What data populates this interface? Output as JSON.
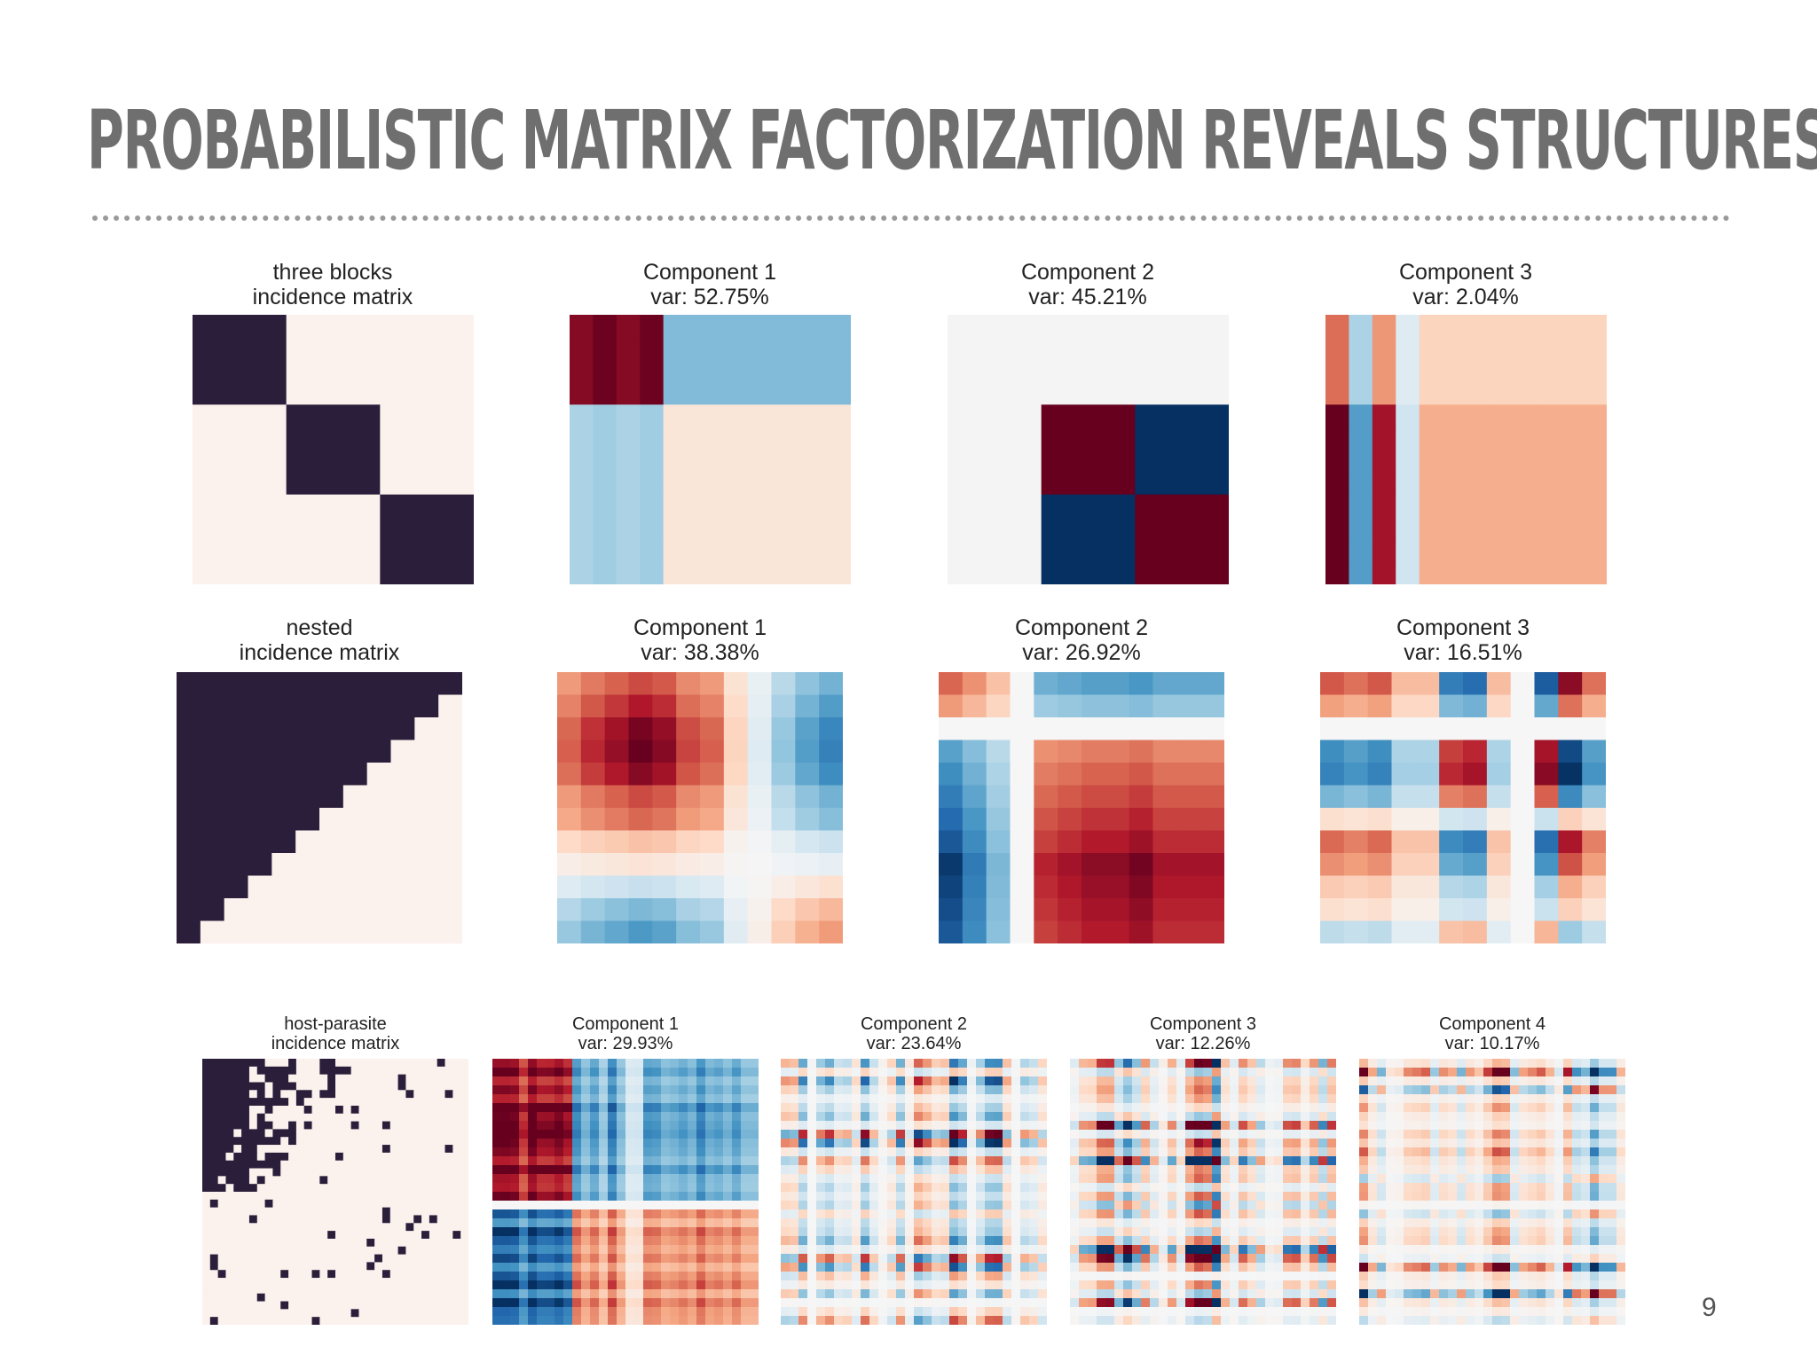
{
  "slide": {
    "title": "PROBABILISTIC MATRIX FACTORIZATION REVEALS STRUCTURES",
    "page_number": "9"
  },
  "colors": {
    "dark": "#2a1e3a",
    "light": "#fbf1ed",
    "deep_red": "#67001f",
    "deep_blue": "#053061",
    "neutral": "#f4f4f4"
  },
  "rows": [
    {
      "panels": [
        {
          "title1": "three blocks",
          "title2": "incidence matrix",
          "kind": "incidence",
          "pattern": "three-blocks"
        },
        {
          "title1": "Component 1",
          "title2": "var: 52.75%",
          "kind": "component",
          "pattern": "tb-c1"
        },
        {
          "title1": "Component 2",
          "title2": "var: 45.21%",
          "kind": "component",
          "pattern": "tb-c2"
        },
        {
          "title1": "Component 3",
          "title2": "var: 2.04%",
          "kind": "component",
          "pattern": "tb-c3"
        }
      ]
    },
    {
      "panels": [
        {
          "title1": "nested",
          "title2": "incidence matrix",
          "kind": "incidence",
          "pattern": "nested"
        },
        {
          "title1": "Component 1",
          "title2": "var: 38.38%",
          "kind": "component",
          "pattern": "n-c1"
        },
        {
          "title1": "Component 2",
          "title2": "var: 26.92%",
          "kind": "component",
          "pattern": "n-c2"
        },
        {
          "title1": "Component 3",
          "title2": "var: 16.51%",
          "kind": "component",
          "pattern": "n-c3"
        }
      ]
    },
    {
      "panels": [
        {
          "title1": "host-parasite",
          "title2": "incidence matrix",
          "kind": "incidence",
          "pattern": "host-parasite"
        },
        {
          "title1": "Component 1",
          "title2": "var: 29.93%",
          "kind": "component",
          "pattern": "hp-c1"
        },
        {
          "title1": "Component 2",
          "title2": "var: 23.64%",
          "kind": "component",
          "pattern": "hp-c2"
        },
        {
          "title1": "Component 3",
          "title2": "var: 12.26%",
          "kind": "component",
          "pattern": "hp-c3"
        },
        {
          "title1": "Component 4",
          "title2": "var: 10.17%",
          "kind": "component",
          "pattern": "hp-c4"
        }
      ]
    }
  ]
}
